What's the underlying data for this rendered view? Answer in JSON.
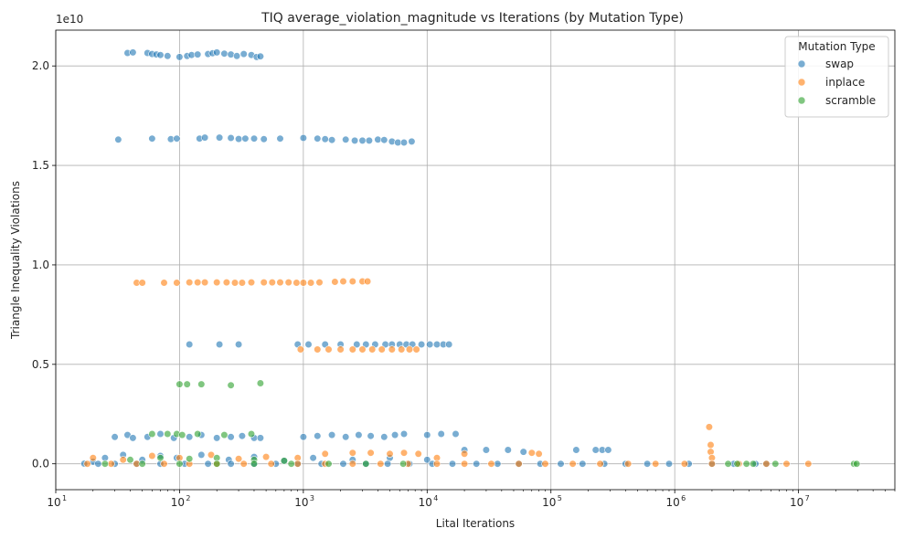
{
  "chart_data": {
    "type": "scatter",
    "title": "TIQ average_violation_magnitude vs Iterations (by Mutation Type)",
    "xlabel": "Lital Iterations",
    "ylabel": "Triangle Inequality Violations",
    "xscale": "log",
    "xlim": [
      10,
      60000000
    ],
    "ylim": [
      -1300000000.0,
      21800000000.0
    ],
    "y_offset_label": "1e10",
    "grid": true,
    "legend_position": "top-right",
    "legend_title": "Mutation Type",
    "x_ticks": [
      {
        "value": 10,
        "base": "10",
        "exp": "1"
      },
      {
        "value": 100,
        "base": "10",
        "exp": "2"
      },
      {
        "value": 1000,
        "base": "10",
        "exp": "3"
      },
      {
        "value": 10000,
        "base": "10",
        "exp": "4"
      },
      {
        "value": 100000,
        "base": "10",
        "exp": "5"
      },
      {
        "value": 1000000,
        "base": "10",
        "exp": "6"
      },
      {
        "value": 10000000,
        "base": "10",
        "exp": "7"
      }
    ],
    "y_ticks": [
      {
        "value": 0,
        "label": "0.0"
      },
      {
        "value": 5000000000.0,
        "label": "0.5"
      },
      {
        "value": 10000000000.0,
        "label": "1.0"
      },
      {
        "value": 15000000000.0,
        "label": "1.5"
      },
      {
        "value": 20000000000.0,
        "label": "2.0"
      }
    ],
    "series": [
      {
        "name": "swap",
        "color": "#1f77b4",
        "points": [
          [
            38,
            20650000000.0
          ],
          [
            42,
            20680000000.0
          ],
          [
            55,
            20650000000.0
          ],
          [
            60,
            20600000000.0
          ],
          [
            65,
            20580000000.0
          ],
          [
            70,
            20550000000.0
          ],
          [
            80,
            20500000000.0
          ],
          [
            100,
            20450000000.0
          ],
          [
            115,
            20500000000.0
          ],
          [
            125,
            20550000000.0
          ],
          [
            140,
            20580000000.0
          ],
          [
            170,
            20600000000.0
          ],
          [
            185,
            20640000000.0
          ],
          [
            200,
            20680000000.0
          ],
          [
            230,
            20620000000.0
          ],
          [
            260,
            20580000000.0
          ],
          [
            290,
            20500000000.0
          ],
          [
            330,
            20600000000.0
          ],
          [
            380,
            20550000000.0
          ],
          [
            420,
            20450000000.0
          ],
          [
            450,
            20480000000.0
          ],
          [
            32,
            16300000000.0
          ],
          [
            60,
            16350000000.0
          ],
          [
            85,
            16320000000.0
          ],
          [
            95,
            16350000000.0
          ],
          [
            145,
            16350000000.0
          ],
          [
            160,
            16400000000.0
          ],
          [
            210,
            16400000000.0
          ],
          [
            260,
            16380000000.0
          ],
          [
            300,
            16330000000.0
          ],
          [
            340,
            16350000000.0
          ],
          [
            400,
            16350000000.0
          ],
          [
            480,
            16320000000.0
          ],
          [
            650,
            16350000000.0
          ],
          [
            1000,
            16380000000.0
          ],
          [
            1300,
            16350000000.0
          ],
          [
            1500,
            16320000000.0
          ],
          [
            1700,
            16280000000.0
          ],
          [
            2200,
            16300000000.0
          ],
          [
            2600,
            16250000000.0
          ],
          [
            3000,
            16250000000.0
          ],
          [
            3400,
            16250000000.0
          ],
          [
            4000,
            16300000000.0
          ],
          [
            4500,
            16280000000.0
          ],
          [
            5200,
            16200000000.0
          ],
          [
            5800,
            16150000000.0
          ],
          [
            6500,
            16150000000.0
          ],
          [
            7500,
            16200000000.0
          ],
          [
            120,
            6000000000.0
          ],
          [
            210,
            6000000000.0
          ],
          [
            300,
            6000000000.0
          ],
          [
            900,
            6000000000.0
          ],
          [
            1100,
            6000000000.0
          ],
          [
            1500,
            6000000000.0
          ],
          [
            2000,
            6000000000.0
          ],
          [
            2700,
            6000000000.0
          ],
          [
            3200,
            6000000000.0
          ],
          [
            3800,
            6000000000.0
          ],
          [
            4600,
            6000000000.0
          ],
          [
            5200,
            6000000000.0
          ],
          [
            6000,
            6000000000.0
          ],
          [
            6800,
            6000000000.0
          ],
          [
            7600,
            6000000000.0
          ],
          [
            9000,
            6000000000.0
          ],
          [
            10500,
            6000000000.0
          ],
          [
            12000,
            6000000000.0
          ],
          [
            13500,
            6000000000.0
          ],
          [
            15000,
            6000000000.0
          ],
          [
            30,
            1350000000.0
          ],
          [
            38,
            1450000000.0
          ],
          [
            42,
            1300000000.0
          ],
          [
            55,
            1350000000.0
          ],
          [
            70,
            1500000000.0
          ],
          [
            90,
            1300000000.0
          ],
          [
            120,
            1350000000.0
          ],
          [
            150,
            1450000000.0
          ],
          [
            200,
            1300000000.0
          ],
          [
            260,
            1350000000.0
          ],
          [
            320,
            1400000000.0
          ],
          [
            400,
            1300000000.0
          ],
          [
            450,
            1300000000.0
          ],
          [
            1000,
            1350000000.0
          ],
          [
            1300,
            1400000000.0
          ],
          [
            1700,
            1450000000.0
          ],
          [
            2200,
            1350000000.0
          ],
          [
            2800,
            1450000000.0
          ],
          [
            3500,
            1400000000.0
          ],
          [
            4500,
            1350000000.0
          ],
          [
            5500,
            1450000000.0
          ],
          [
            6500,
            1500000000.0
          ],
          [
            10000,
            1450000000.0
          ],
          [
            13000,
            1500000000.0
          ],
          [
            17000,
            1500000000.0
          ],
          [
            20,
            100000000.0
          ],
          [
            25,
            300000000.0
          ],
          [
            35,
            450000000.0
          ],
          [
            50,
            200000000.0
          ],
          [
            70,
            400000000.0
          ],
          [
            95,
            300000000.0
          ],
          [
            150,
            450000000.0
          ],
          [
            250,
            200000000.0
          ],
          [
            400,
            350000000.0
          ],
          [
            700,
            150000000.0
          ],
          [
            1200,
            300000000.0
          ],
          [
            2500,
            200000000.0
          ],
          [
            5000,
            300000000.0
          ],
          [
            10000,
            200000000.0
          ],
          [
            20000,
            700000000.0
          ],
          [
            30000,
            700000000.0
          ],
          [
            45000,
            700000000.0
          ],
          [
            60000,
            600000000.0
          ],
          [
            160000,
            700000000.0
          ],
          [
            230000,
            700000000.0
          ],
          [
            260000,
            700000000.0
          ],
          [
            290000,
            700000000.0
          ],
          [
            17,
            10000000.0
          ],
          [
            22,
            0
          ],
          [
            30,
            0
          ],
          [
            45,
            0
          ],
          [
            70,
            0
          ],
          [
            110,
            0
          ],
          [
            170,
            0
          ],
          [
            260,
            0
          ],
          [
            400,
            0
          ],
          [
            600,
            0
          ],
          [
            900,
            0
          ],
          [
            1400,
            0
          ],
          [
            2100,
            0
          ],
          [
            3200,
            0
          ],
          [
            4800,
            0
          ],
          [
            7200,
            0
          ],
          [
            11000,
            0
          ],
          [
            16000,
            0
          ],
          [
            25000,
            0
          ],
          [
            37000,
            0
          ],
          [
            55000,
            0
          ],
          [
            82000,
            0
          ],
          [
            120000,
            0
          ],
          [
            180000,
            0
          ],
          [
            270000,
            0
          ],
          [
            400000,
            0
          ],
          [
            600000,
            0
          ],
          [
            900000,
            0
          ],
          [
            1300000,
            0
          ],
          [
            2000000,
            0
          ],
          [
            3000000,
            0
          ],
          [
            4500000,
            0
          ],
          [
            5500000,
            0
          ]
        ]
      },
      {
        "name": "inplace",
        "color": "#ff7f0e",
        "points": [
          [
            45,
            9100000000.0
          ],
          [
            50,
            9100000000.0
          ],
          [
            75,
            9100000000.0
          ],
          [
            95,
            9100000000.0
          ],
          [
            120,
            9120000000.0
          ],
          [
            140,
            9120000000.0
          ],
          [
            160,
            9120000000.0
          ],
          [
            200,
            9120000000.0
          ],
          [
            240,
            9120000000.0
          ],
          [
            280,
            9100000000.0
          ],
          [
            320,
            9100000000.0
          ],
          [
            380,
            9120000000.0
          ],
          [
            480,
            9120000000.0
          ],
          [
            560,
            9120000000.0
          ],
          [
            650,
            9120000000.0
          ],
          [
            760,
            9120000000.0
          ],
          [
            880,
            9100000000.0
          ],
          [
            1000,
            9100000000.0
          ],
          [
            1150,
            9100000000.0
          ],
          [
            1350,
            9120000000.0
          ],
          [
            1800,
            9150000000.0
          ],
          [
            2100,
            9170000000.0
          ],
          [
            2500,
            9170000000.0
          ],
          [
            3000,
            9170000000.0
          ],
          [
            3300,
            9170000000.0
          ],
          [
            950,
            5750000000.0
          ],
          [
            1300,
            5750000000.0
          ],
          [
            1600,
            5750000000.0
          ],
          [
            2000,
            5750000000.0
          ],
          [
            2500,
            5750000000.0
          ],
          [
            3000,
            5750000000.0
          ],
          [
            3600,
            5750000000.0
          ],
          [
            4300,
            5750000000.0
          ],
          [
            5200,
            5750000000.0
          ],
          [
            6200,
            5750000000.0
          ],
          [
            7200,
            5750000000.0
          ],
          [
            8200,
            5750000000.0
          ],
          [
            1900000,
            1850000000.0
          ],
          [
            1950000,
            950000000.0
          ],
          [
            1950000,
            600000000.0
          ],
          [
            2000000,
            300000000.0
          ],
          [
            20,
            300000000.0
          ],
          [
            35,
            200000000.0
          ],
          [
            60,
            400000000.0
          ],
          [
            100,
            300000000.0
          ],
          [
            180,
            450000000.0
          ],
          [
            300,
            250000000.0
          ],
          [
            500,
            350000000.0
          ],
          [
            900,
            300000000.0
          ],
          [
            1500,
            500000000.0
          ],
          [
            2500,
            550000000.0
          ],
          [
            3500,
            550000000.0
          ],
          [
            5000,
            500000000.0
          ],
          [
            6500,
            550000000.0
          ],
          [
            8500,
            500000000.0
          ],
          [
            12000,
            300000000.0
          ],
          [
            20000,
            500000000.0
          ],
          [
            70000,
            550000000.0
          ],
          [
            80000,
            500000000.0
          ],
          [
            18,
            0
          ],
          [
            28,
            0
          ],
          [
            45,
            0
          ],
          [
            75,
            0
          ],
          [
            120,
            0
          ],
          [
            200,
            0
          ],
          [
            330,
            0
          ],
          [
            550,
            0
          ],
          [
            900,
            0
          ],
          [
            1500,
            0
          ],
          [
            2500,
            0
          ],
          [
            4200,
            0
          ],
          [
            7000,
            0
          ],
          [
            12000,
            0
          ],
          [
            20000,
            0
          ],
          [
            33000,
            0
          ],
          [
            55000,
            0
          ],
          [
            90000,
            0
          ],
          [
            150000,
            0
          ],
          [
            250000,
            0
          ],
          [
            420000,
            0
          ],
          [
            700000,
            0
          ],
          [
            1200000,
            0
          ],
          [
            2000000,
            0
          ],
          [
            3300000,
            0
          ],
          [
            5500000,
            0
          ],
          [
            8000000,
            0
          ],
          [
            12000000,
            0
          ]
        ]
      },
      {
        "name": "scramble",
        "color": "#2ca02c",
        "points": [
          [
            100,
            4000000000.0
          ],
          [
            115,
            4000000000.0
          ],
          [
            150,
            4000000000.0
          ],
          [
            260,
            3950000000.0
          ],
          [
            450,
            4050000000.0
          ],
          [
            60,
            1500000000.0
          ],
          [
            80,
            1500000000.0
          ],
          [
            95,
            1500000000.0
          ],
          [
            105,
            1450000000.0
          ],
          [
            140,
            1500000000.0
          ],
          [
            230,
            1450000000.0
          ],
          [
            380,
            1500000000.0
          ],
          [
            40,
            200000000.0
          ],
          [
            70,
            300000000.0
          ],
          [
            120,
            250000000.0
          ],
          [
            200,
            300000000.0
          ],
          [
            400,
            200000000.0
          ],
          [
            700,
            150000000.0
          ],
          [
            25,
            0
          ],
          [
            50,
            0
          ],
          [
            100,
            0
          ],
          [
            200,
            0
          ],
          [
            400,
            0
          ],
          [
            800,
            0
          ],
          [
            1600,
            0
          ],
          [
            3200,
            0
          ],
          [
            6400,
            0
          ],
          [
            2700000,
            0
          ],
          [
            3200000,
            0
          ],
          [
            3800000,
            0
          ],
          [
            4300000,
            0
          ],
          [
            6500000,
            0
          ],
          [
            28000000,
            0
          ],
          [
            29500000,
            0
          ]
        ]
      }
    ]
  }
}
